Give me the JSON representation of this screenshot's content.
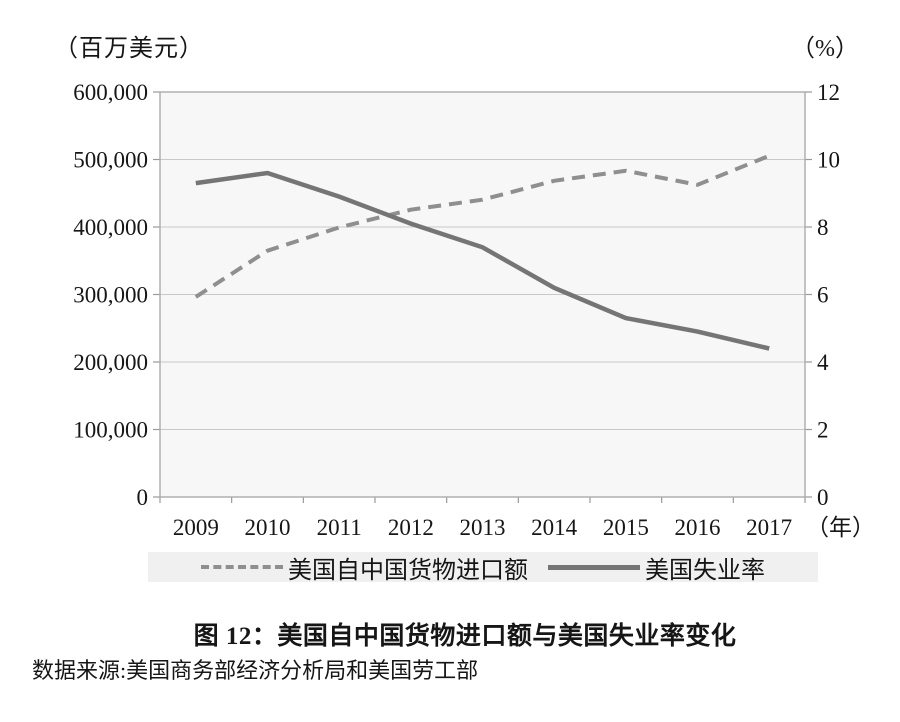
{
  "figure": {
    "left_axis_unit_label": "（百万美元）",
    "right_axis_unit_label": "（%）",
    "x_axis_unit_label": "（年）",
    "caption": "图 12：美国自中国货物进口额与美国失业率变化",
    "source_note": "数据来源:美国商务部经济分析局和美国劳工部"
  },
  "legend": {
    "items": [
      {
        "label": "美国自中国货物进口额",
        "marker": "dashed-line",
        "color": "#8f8f8f"
      },
      {
        "label": "美国失业率",
        "marker": "solid-line",
        "color": "#757575"
      }
    ]
  },
  "chart_data": {
    "type": "line",
    "title": "图 12：美国自中国货物进口额与美国失业率变化",
    "categories": [
      "2009",
      "2010",
      "2011",
      "2012",
      "2013",
      "2014",
      "2015",
      "2016",
      "2017"
    ],
    "series": [
      {
        "name": "美国自中国货物进口额",
        "key": "us-imports-from-china",
        "axis": "left",
        "unit": "百万美元",
        "line_style": "dashed",
        "color": "#8f8f8f",
        "values": [
          296374,
          364953,
          399371,
          425619,
          440430,
          468475,
          483202,
          462542,
          505470
        ]
      },
      {
        "name": "美国失业率",
        "key": "us-unemployment-rate",
        "axis": "right",
        "unit": "%",
        "line_style": "solid",
        "color": "#757575",
        "values": [
          9.3,
          9.6,
          8.9,
          8.1,
          7.4,
          6.2,
          5.3,
          4.9,
          4.4
        ]
      }
    ],
    "left_axis": {
      "min": 0,
      "max": 600000,
      "step": 100000,
      "tick_labels_top_to_bottom": [
        "600,000",
        "500,000",
        "400,000",
        "300,000",
        "200,000",
        "100,000",
        "0"
      ]
    },
    "right_axis": {
      "min": 0,
      "max": 12,
      "step": 2,
      "tick_labels_top_to_bottom": [
        "12",
        "10",
        "8",
        "6",
        "4",
        "2",
        "0"
      ]
    },
    "x_axis": {
      "unit_label": "（年）"
    },
    "grid": true,
    "legend_position": "bottom",
    "plot_bg": "#f7f7f7",
    "grid_color": "#c9c9c9",
    "frame_color": "#ababab",
    "tick_color": "#9a9a9a",
    "legend_bg": "#f0f0f0"
  }
}
